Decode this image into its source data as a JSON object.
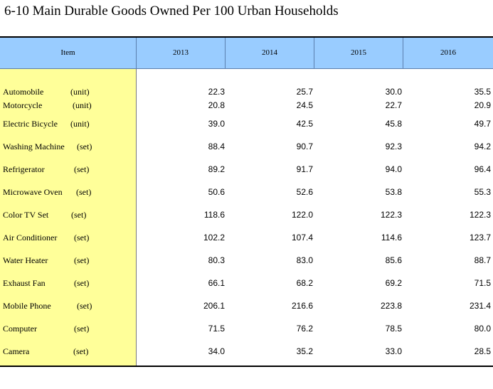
{
  "title": "6-10  Main Durable Goods Owned Per 100 Urban Households",
  "header": {
    "item": "Item",
    "years": [
      "2013",
      "2014",
      "2015",
      "2016"
    ]
  },
  "rows": [
    {
      "name": "Automobile",
      "unit": "(unit)",
      "values": [
        "22.3",
        "25.7",
        "30.0",
        "35.5"
      ]
    },
    {
      "name": "Motorcycle",
      "unit": "(unit)",
      "values": [
        "20.8",
        "24.5",
        "22.7",
        "20.9"
      ]
    },
    {
      "name": "Electric Bicycle",
      "unit": "(unit)",
      "values": [
        "39.0",
        "42.5",
        "45.8",
        "49.7"
      ]
    },
    {
      "name": "Washing Machine",
      "unit": "(set)",
      "values": [
        "88.4",
        "90.7",
        "92.3",
        "94.2"
      ]
    },
    {
      "name": "Refrigerator",
      "unit": "(set)",
      "values": [
        "89.2",
        "91.7",
        "94.0",
        "96.4"
      ]
    },
    {
      "name": "Microwave Oven",
      "unit": "(set)",
      "values": [
        "50.6",
        "52.6",
        "53.8",
        "55.3"
      ]
    },
    {
      "name": "Color TV Set",
      "unit": "(set)",
      "values": [
        "118.6",
        "122.0",
        "122.3",
        "122.3"
      ]
    },
    {
      "name": "Air Conditioner",
      "unit": "(set)",
      "values": [
        "102.2",
        "107.4",
        "114.6",
        "123.7"
      ]
    },
    {
      "name": "Water Heater",
      "unit": "(set)",
      "values": [
        "80.3",
        "83.0",
        "85.6",
        "88.7"
      ]
    },
    {
      "name": "Exhaust Fan",
      "unit": "(set)",
      "values": [
        "66.1",
        "68.2",
        "69.2",
        "71.5"
      ]
    },
    {
      "name": "Mobile Phone",
      "unit": "(set)",
      "values": [
        "206.1",
        "216.6",
        "223.8",
        "231.4"
      ]
    },
    {
      "name": "Computer",
      "unit": "(set)",
      "values": [
        "71.5",
        "76.2",
        "78.5",
        "80.0"
      ]
    },
    {
      "name": "Camera",
      "unit": "(set)",
      "values": [
        "34.0",
        "35.2",
        "33.0",
        "28.5"
      ]
    }
  ],
  "colors": {
    "header_bg": "#99ccff",
    "item_col_bg": "#ffff99"
  }
}
